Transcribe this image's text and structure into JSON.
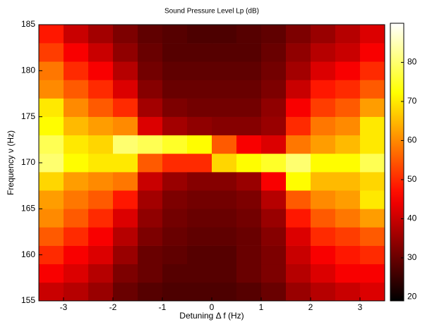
{
  "chart_data": {
    "type": "heatmap",
    "title": "Sound Pressure Level  Lp (dB)",
    "x_label": "Detuning  Δ f (Hz)",
    "y_label": "Frequency  ν (Hz)",
    "x_edges": [
      -3.5,
      -3,
      -2.5,
      -2,
      -1.5,
      -1,
      -0.5,
      0,
      0.5,
      1,
      1.5,
      2,
      2.5,
      3,
      3.5
    ],
    "y_edges": [
      155,
      157,
      159,
      161,
      163,
      165,
      167,
      169,
      171,
      173,
      175,
      177,
      179,
      181,
      183,
      185
    ],
    "z": [
      [
        40,
        38,
        35,
        30,
        28,
        27,
        27,
        27,
        28,
        30,
        35,
        38,
        40,
        42
      ],
      [
        45,
        42,
        38,
        32,
        30,
        28,
        28,
        28,
        30,
        32,
        38,
        42,
        45,
        45
      ],
      [
        50,
        45,
        42,
        35,
        30,
        29,
        28,
        28,
        30,
        32,
        40,
        45,
        48,
        50
      ],
      [
        55,
        50,
        45,
        38,
        32,
        30,
        29,
        29,
        30,
        33,
        42,
        50,
        52,
        55
      ],
      [
        60,
        55,
        50,
        42,
        34,
        31,
        30,
        30,
        31,
        35,
        48,
        55,
        58,
        62
      ],
      [
        62,
        58,
        55,
        48,
        36,
        32,
        31,
        31,
        32,
        38,
        55,
        60,
        62,
        70
      ],
      [
        68,
        62,
        60,
        58,
        40,
        35,
        33,
        33,
        35,
        45,
        72,
        65,
        65,
        68
      ],
      [
        80,
        72,
        70,
        70,
        55,
        50,
        50,
        68,
        72,
        75,
        80,
        72,
        72,
        78
      ],
      [
        78,
        70,
        68,
        80,
        78,
        75,
        72,
        55,
        45,
        42,
        58,
        62,
        65,
        70
      ],
      [
        72,
        65,
        62,
        60,
        42,
        36,
        34,
        33,
        33,
        35,
        50,
        58,
        60,
        70
      ],
      [
        70,
        60,
        55,
        50,
        36,
        32,
        31,
        31,
        31,
        34,
        45,
        52,
        55,
        62
      ],
      [
        60,
        55,
        50,
        42,
        33,
        30,
        30,
        30,
        30,
        32,
        40,
        48,
        50,
        55
      ],
      [
        58,
        50,
        45,
        38,
        31,
        29,
        29,
        29,
        29,
        31,
        36,
        42,
        45,
        50
      ],
      [
        52,
        45,
        40,
        34,
        30,
        28,
        28,
        28,
        28,
        30,
        34,
        38,
        40,
        45
      ],
      [
        48,
        40,
        36,
        32,
        29,
        28,
        27,
        27,
        28,
        29,
        32,
        35,
        38,
        42
      ]
    ],
    "xlim": [
      -3.5,
      3.5
    ],
    "ylim": [
      155,
      185
    ],
    "xticks": [
      -3,
      -2,
      -1,
      0,
      1,
      2,
      3
    ],
    "yticks": [
      155,
      160,
      165,
      170,
      175,
      180,
      185
    ],
    "colormap": "hot",
    "clim": [
      19,
      90
    ],
    "cticks": [
      20,
      30,
      40,
      50,
      60,
      70,
      80
    ]
  }
}
